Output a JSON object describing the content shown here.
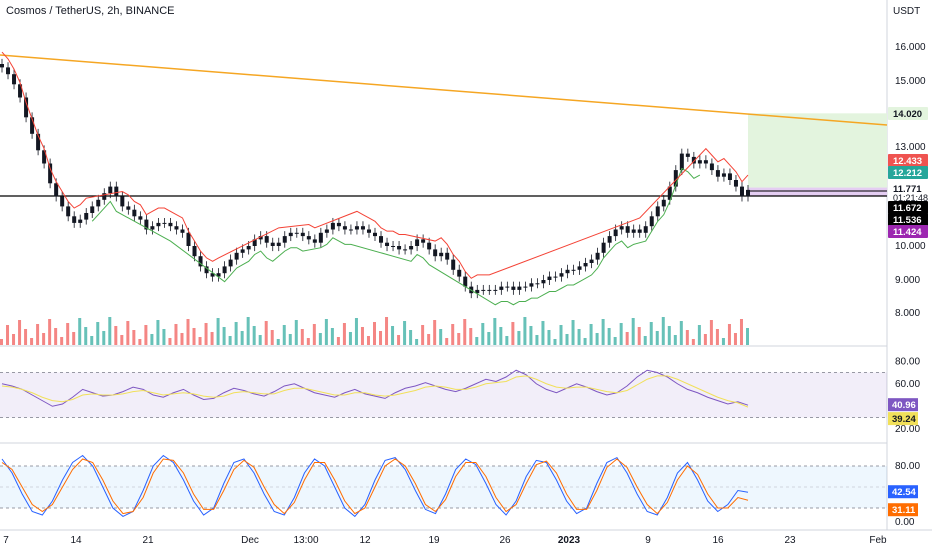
{
  "header": {
    "symbol_title": "Cosmos / TetherUS, 2h, BINANCE",
    "currency": "USDT",
    "countdown": "01:21:48"
  },
  "colors": {
    "up": "#26a69a",
    "down": "#ef5350",
    "trendline": "#f5a623",
    "support_line": "#000000",
    "supertrend_up": "#4caf50",
    "supertrend_down": "#f44336",
    "rsi_line": "#7e57c2",
    "rsi_ma": "#f1e05a",
    "stoch_k": "#2962ff",
    "stoch_d": "#ff6d00",
    "target_zone": "#e3f4de",
    "stop_zone": "#e4cdf2"
  },
  "chart_data": [
    {
      "type": "candlestick",
      "title": "Cosmos / TetherUS, 2h, BINANCE",
      "ylabel": "USDT",
      "y_ticks": [
        "16.000",
        "15.000",
        "13.000",
        "10.000",
        "9.000",
        "8.000"
      ],
      "ylim": [
        7.6,
        16.6
      ],
      "x_tick_labels": [
        "7",
        "14",
        "21",
        "Dec",
        "13:00",
        "12",
        "19",
        "26",
        "2023",
        "9",
        "16",
        "23",
        "Feb"
      ],
      "close_series": [
        15.4,
        15.2,
        14.9,
        14.5,
        13.9,
        13.4,
        12.9,
        12.5,
        11.9,
        11.5,
        11.2,
        10.9,
        10.7,
        10.8,
        11.0,
        11.2,
        11.4,
        11.6,
        11.8,
        11.5,
        11.2,
        11.1,
        10.9,
        10.8,
        10.5,
        10.6,
        10.7,
        10.7,
        10.6,
        10.5,
        10.4,
        10.0,
        9.7,
        9.4,
        9.2,
        9.1,
        9.2,
        9.4,
        9.6,
        9.8,
        9.9,
        10.0,
        10.2,
        10.3,
        10.1,
        10.0,
        10.1,
        10.3,
        10.4,
        10.4,
        10.3,
        10.2,
        10.1,
        10.4,
        10.5,
        10.7,
        10.6,
        10.5,
        10.5,
        10.6,
        10.5,
        10.4,
        10.3,
        10.1,
        10.0,
        10.0,
        9.9,
        9.9,
        10.0,
        10.2,
        10.1,
        9.9,
        9.7,
        9.8,
        9.6,
        9.3,
        9.1,
        8.8,
        8.6,
        8.7,
        8.7,
        8.7,
        8.7,
        8.8,
        8.8,
        8.7,
        8.8,
        8.8,
        8.9,
        8.9,
        9.0,
        9.1,
        9.1,
        9.2,
        9.3,
        9.3,
        9.4,
        9.5,
        9.6,
        9.8,
        10.1,
        10.3,
        10.5,
        10.6,
        10.4,
        10.5,
        10.4,
        10.6,
        10.9,
        11.2,
        11.4,
        11.8,
        12.3,
        12.8,
        12.7,
        12.5,
        12.6,
        12.5,
        12.3,
        12.1,
        12.2,
        12.0,
        11.8,
        11.5,
        11.7
      ],
      "volume_note": "volume histogram along bottom of main pane",
      "horizontal_levels": {
        "resistance_target": 14.02,
        "upper_band": 12.433,
        "middle_band": 12.212,
        "last_close": 11.771,
        "support": 11.672,
        "lower_band": 11.536,
        "stop": 11.424
      },
      "price_tags": [
        {
          "label": "14.020",
          "color": "#e3f4de",
          "text_color": "#131722"
        },
        {
          "label": "12.433",
          "color": "#ef5350",
          "text_color": "#ffffff"
        },
        {
          "label": "12.212",
          "color": "#26a69a",
          "text_color": "#ffffff"
        },
        {
          "label": "11.771",
          "color": "#ffffff",
          "text_color": "#131722"
        },
        {
          "label": "11.672",
          "color": "#000000",
          "text_color": "#ffffff"
        },
        {
          "label": "11.536",
          "color": "#000000",
          "text_color": "#ffffff"
        },
        {
          "label": "11.424",
          "color": "#9c27b0",
          "text_color": "#ffffff"
        }
      ]
    },
    {
      "type": "line",
      "title": "",
      "y_ticks": [
        "80.00",
        "60.00",
        "20.00"
      ],
      "ylim": [
        10,
        90
      ],
      "band": [
        30,
        70
      ],
      "series": [
        {
          "values": [
            60,
            58,
            55,
            50,
            45,
            40,
            42,
            48,
            55,
            52,
            49,
            50,
            53,
            57,
            55,
            50,
            48,
            52,
            55,
            50,
            46,
            47,
            52,
            56,
            54,
            51,
            49,
            53,
            58,
            60,
            56,
            52,
            50,
            48,
            52,
            55,
            51,
            49,
            47,
            52,
            56,
            58,
            61,
            58,
            55,
            53,
            56,
            60,
            64,
            62,
            66,
            72,
            68,
            60,
            55,
            52,
            56,
            60,
            57,
            53,
            50,
            52,
            58,
            66,
            72,
            70,
            66,
            60,
            55,
            52,
            48,
            45,
            42,
            44,
            40.96
          ]
        },
        {
          "values": [
            58,
            57,
            55,
            52,
            48,
            45,
            44,
            46,
            50,
            51,
            50,
            50,
            51,
            53,
            54,
            52,
            50,
            51,
            52,
            51,
            49,
            48,
            49,
            52,
            53,
            52,
            51,
            51,
            54,
            56,
            56,
            54,
            52,
            50,
            50,
            52,
            52,
            50,
            49,
            50,
            52,
            54,
            57,
            58,
            57,
            55,
            55,
            57,
            60,
            61,
            62,
            66,
            67,
            64,
            60,
            57,
            56,
            57,
            57,
            55,
            53,
            52,
            54,
            59,
            64,
            67,
            67,
            64,
            60,
            56,
            52,
            48,
            45,
            43,
            39.24
          ]
        }
      ],
      "last_values": {
        "rsi": "40.96",
        "ma": "39.24"
      }
    },
    {
      "type": "line",
      "title": "",
      "y_ticks": [
        "80.00",
        "0.00"
      ],
      "ylim": [
        0,
        100
      ],
      "band": [
        20,
        80
      ],
      "series": [
        {
          "values": [
            90,
            70,
            40,
            15,
            10,
            30,
            60,
            85,
            95,
            80,
            50,
            20,
            8,
            15,
            45,
            80,
            95,
            85,
            60,
            30,
            10,
            20,
            55,
            85,
            90,
            70,
            40,
            15,
            10,
            35,
            70,
            90,
            80,
            50,
            20,
            8,
            25,
            60,
            88,
            92,
            75,
            45,
            18,
            12,
            40,
            75,
            90,
            82,
            55,
            25,
            10,
            30,
            65,
            88,
            85,
            60,
            30,
            12,
            20,
            55,
            85,
            92,
            70,
            40,
            15,
            10,
            35,
            70,
            85,
            60,
            30,
            15,
            25,
            45,
            42.54
          ]
        },
        {
          "values": [
            85,
            75,
            50,
            25,
            15,
            25,
            50,
            75,
            90,
            85,
            60,
            30,
            12,
            15,
            35,
            70,
            90,
            88,
            70,
            40,
            18,
            18,
            45,
            75,
            88,
            78,
            50,
            25,
            12,
            28,
            60,
            85,
            85,
            60,
            30,
            12,
            20,
            50,
            80,
            90,
            80,
            55,
            25,
            15,
            32,
            65,
            85,
            85,
            65,
            35,
            15,
            25,
            55,
            82,
            87,
            70,
            40,
            18,
            18,
            45,
            78,
            90,
            78,
            50,
            25,
            12,
            28,
            60,
            80,
            68,
            40,
            20,
            20,
            35,
            31.11
          ]
        }
      ],
      "last_values": {
        "k": "42.54",
        "d": "31.11"
      }
    }
  ]
}
